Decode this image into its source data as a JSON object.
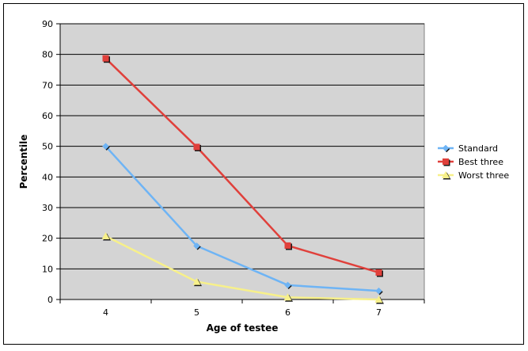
{
  "chart_data": {
    "type": "line",
    "title": "",
    "xlabel": "Age of testee",
    "ylabel": "Percentile",
    "categories": [
      "4",
      "5",
      "6",
      "7"
    ],
    "ylim": [
      0,
      90
    ],
    "yticks": [
      0,
      10,
      20,
      30,
      40,
      50,
      60,
      70,
      80,
      90
    ],
    "grid": true,
    "plot_background": "#d4d4d4",
    "legend_position": "right",
    "series": [
      {
        "name": "Standard",
        "values": [
          50,
          17.5,
          4.7,
          2.8
        ],
        "color": "#6eb4f5",
        "marker": "diamond"
      },
      {
        "name": "Best three",
        "values": [
          78.7,
          49.8,
          17.6,
          8.8
        ],
        "color": "#e0403b",
        "marker": "square"
      },
      {
        "name": "Worst three",
        "values": [
          20.7,
          5.8,
          0.7,
          0
        ],
        "color": "#f7f08a",
        "marker": "triangle"
      }
    ]
  }
}
